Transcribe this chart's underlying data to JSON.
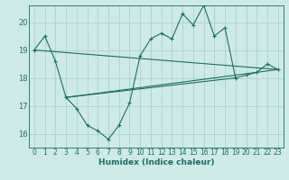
{
  "xlabel": "Humidex (Indice chaleur)",
  "background_color": "#ceeae6",
  "line_color": "#1a6e64",
  "grid_color": "#a8d4cf",
  "xlim": [
    -0.5,
    23.5
  ],
  "ylim": [
    15.5,
    20.6
  ],
  "yticks": [
    16,
    17,
    18,
    19,
    20
  ],
  "xticks": [
    0,
    1,
    2,
    3,
    4,
    5,
    6,
    7,
    8,
    9,
    10,
    11,
    12,
    13,
    14,
    15,
    16,
    17,
    18,
    19,
    20,
    21,
    22,
    23
  ],
  "main_curve_x": [
    0,
    1,
    2,
    3,
    4,
    5,
    6,
    7,
    8,
    9,
    10,
    11,
    12,
    13,
    14,
    15,
    16,
    17,
    18,
    19,
    20,
    21,
    22,
    23
  ],
  "main_curve_y": [
    19.0,
    19.5,
    18.6,
    17.3,
    16.9,
    16.3,
    16.1,
    15.8,
    16.3,
    17.1,
    18.8,
    19.4,
    19.6,
    19.4,
    20.3,
    19.9,
    20.6,
    19.5,
    19.8,
    18.0,
    18.1,
    18.2,
    18.5,
    18.3
  ],
  "line1_x": [
    0,
    23
  ],
  "line1_y": [
    19.0,
    18.3
  ],
  "line2_x": [
    3,
    23
  ],
  "line2_y": [
    17.3,
    18.3
  ],
  "line3_x": [
    3,
    19
  ],
  "line3_y": [
    17.3,
    18.0
  ],
  "tick_fontsize": 5.5,
  "xlabel_fontsize": 6.5,
  "linewidth": 0.8,
  "marker_size": 3.0
}
